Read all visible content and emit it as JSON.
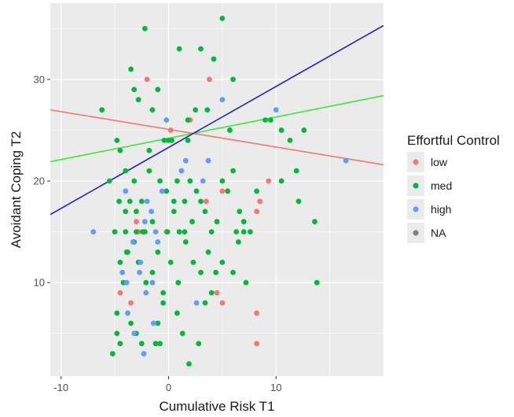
{
  "chart_data": {
    "type": "scatter",
    "xlabel": "Cumulative Risk T1",
    "ylabel": "Avoidant Coping T2",
    "xlim": [
      -11,
      20
    ],
    "ylim": [
      0.8,
      37.5
    ],
    "x_ticks": [
      -10,
      0,
      10
    ],
    "x_tick_labels": [
      "-10",
      "0",
      "10"
    ],
    "y_ticks": [
      10,
      20,
      30
    ],
    "y_tick_labels": [
      "10",
      "20",
      "30"
    ],
    "grid": true,
    "panel_background": "#ebebeb",
    "legend": {
      "title": "Effortful Control",
      "position": "right",
      "entries": [
        {
          "label": "low",
          "color": "#f8766d"
        },
        {
          "label": "med",
          "color": "#00ba38"
        },
        {
          "label": "high",
          "color": "#619cff"
        },
        {
          "label": "NA",
          "color": "#7f7f7f"
        }
      ]
    },
    "series": [
      {
        "name": "low",
        "color": "#f8766d",
        "points": [
          [
            -2,
            30
          ],
          [
            -2.8,
            15
          ],
          [
            -4.5,
            9
          ],
          [
            -3.5,
            8
          ],
          [
            -3,
            16
          ],
          [
            1.2,
            21
          ],
          [
            2,
            26
          ],
          [
            3.8,
            30
          ],
          [
            3.5,
            18
          ],
          [
            5,
            19
          ],
          [
            5.5,
            19
          ],
          [
            4.5,
            9
          ],
          [
            5,
            8
          ],
          [
            8.2,
            17
          ],
          [
            8.5,
            18
          ],
          [
            9.3,
            20
          ],
          [
            8.2,
            7
          ],
          [
            8.2,
            4
          ],
          [
            -0.2,
            15
          ],
          [
            0.2,
            25
          ]
        ]
      },
      {
        "name": "med",
        "color": "#00ba38",
        "points": [
          [
            -6.2,
            27
          ],
          [
            -4.8,
            24
          ],
          [
            -4.5,
            23
          ],
          [
            -3.5,
            31
          ],
          [
            -3.2,
            29
          ],
          [
            -2.8,
            28
          ],
          [
            -2.2,
            35
          ],
          [
            -1.5,
            27
          ],
          [
            -1.8,
            23
          ],
          [
            -4,
            21
          ],
          [
            -3.2,
            20
          ],
          [
            -4.6,
            18
          ],
          [
            -3.6,
            18
          ],
          [
            -3,
            17
          ],
          [
            -5,
            15
          ],
          [
            -4,
            15
          ],
          [
            -3,
            15
          ],
          [
            -2.2,
            15
          ],
          [
            -1.5,
            16
          ],
          [
            -0.8,
            20
          ],
          [
            -0.2,
            19
          ],
          [
            0.5,
            18
          ],
          [
            1,
            15
          ],
          [
            1.5,
            15
          ],
          [
            2,
            20
          ],
          [
            2.6,
            19
          ],
          [
            3,
            18
          ],
          [
            3.4,
            17
          ],
          [
            4,
            15
          ],
          [
            4.5,
            16
          ],
          [
            5,
            20
          ],
          [
            5.5,
            19
          ],
          [
            6,
            21
          ],
          [
            6.6,
            17
          ],
          [
            7,
            15
          ],
          [
            7.6,
            15
          ],
          [
            8.2,
            19
          ],
          [
            9.5,
            26
          ],
          [
            9,
            26
          ],
          [
            10.5,
            25
          ],
          [
            11.3,
            24
          ],
          [
            11.9,
            21
          ],
          [
            12.6,
            25
          ],
          [
            12.1,
            18
          ],
          [
            13.6,
            16
          ],
          [
            13.8,
            10
          ],
          [
            10.5,
            20
          ],
          [
            0.3,
            24
          ],
          [
            1.8,
            24
          ],
          [
            2.5,
            27
          ],
          [
            3,
            33
          ],
          [
            3.6,
            27
          ],
          [
            4.2,
            32
          ],
          [
            5,
            36
          ],
          [
            5.7,
            25
          ],
          [
            6,
            30
          ],
          [
            -0.4,
            24
          ],
          [
            0,
            24
          ],
          [
            -1,
            29
          ],
          [
            -4.5,
            12
          ],
          [
            -3.9,
            13
          ],
          [
            -3.2,
            14
          ],
          [
            -2.8,
            12
          ],
          [
            -2.1,
            10
          ],
          [
            -1.5,
            11
          ],
          [
            -1,
            13
          ],
          [
            -0.5,
            9
          ],
          [
            0.2,
            12
          ],
          [
            0.9,
            10
          ],
          [
            1.6,
            14
          ],
          [
            2.3,
            12
          ],
          [
            3,
            11
          ],
          [
            3.7,
            13
          ],
          [
            4.4,
            11
          ],
          [
            5,
            12
          ],
          [
            6,
            11
          ],
          [
            6.5,
            14
          ],
          [
            7.2,
            10
          ],
          [
            -4.2,
            10
          ],
          [
            -3.5,
            6
          ],
          [
            -4.8,
            7
          ],
          [
            -4.5,
            4
          ],
          [
            -5.2,
            3
          ],
          [
            -3,
            5
          ],
          [
            -2.5,
            4
          ],
          [
            -1,
            6
          ],
          [
            -0.5,
            8
          ],
          [
            0.8,
            7
          ],
          [
            -0.8,
            4
          ],
          [
            1.3,
            5
          ],
          [
            1.9,
            2
          ],
          [
            2.8,
            4
          ],
          [
            3.4,
            8
          ],
          [
            -1.2,
            4
          ],
          [
            -4,
            17
          ],
          [
            -2.5,
            18
          ],
          [
            -1.8,
            21
          ],
          [
            0.5,
            17
          ],
          [
            1.5,
            18
          ],
          [
            7,
            16
          ],
          [
            2.2,
            16
          ],
          [
            -4.8,
            5
          ],
          [
            -3.8,
            13
          ],
          [
            0.8,
            20
          ],
          [
            -2.4,
            15
          ],
          [
            4,
            9
          ],
          [
            1,
            33
          ],
          [
            6.3,
            15
          ],
          [
            -5.5,
            20
          ],
          [
            -0.1,
            15
          ],
          [
            1.8,
            26
          ]
        ]
      },
      {
        "name": "high",
        "color": "#619cff",
        "points": [
          [
            -7,
            15
          ],
          [
            -4,
            19
          ],
          [
            -3.8,
            7
          ],
          [
            -4.3,
            11
          ],
          [
            -3.3,
            14
          ],
          [
            -2.6,
            12
          ],
          [
            -2.2,
            16
          ],
          [
            -2,
            18
          ],
          [
            -1.6,
            17
          ],
          [
            -1.2,
            15
          ],
          [
            -1,
            14
          ],
          [
            -0.6,
            19
          ],
          [
            -0.2,
            26
          ],
          [
            1.2,
            21
          ],
          [
            1.6,
            22
          ],
          [
            3.2,
            20
          ],
          [
            3.7,
            22
          ],
          [
            2.6,
            8
          ],
          [
            -1.4,
            6
          ],
          [
            -2.3,
            3
          ],
          [
            -3.2,
            5
          ],
          [
            -2.1,
            9
          ],
          [
            -1.5,
            10
          ],
          [
            -2.7,
            11
          ],
          [
            5,
            28
          ],
          [
            10,
            27
          ],
          [
            16.5,
            22
          ],
          [
            -3.9,
            10
          ]
        ]
      }
    ],
    "trend_lines": [
      {
        "name": "low",
        "color": "#f8766d",
        "x": [
          -11,
          20
        ],
        "y": [
          27.0,
          21.6
        ]
      },
      {
        "name": "med",
        "color": "#33ee33",
        "x": [
          -11,
          20
        ],
        "y": [
          21.9,
          28.4
        ]
      },
      {
        "name": "high",
        "color": "#1a23d6",
        "x": [
          -11,
          20
        ],
        "y": [
          16.7,
          35.3
        ]
      }
    ]
  }
}
